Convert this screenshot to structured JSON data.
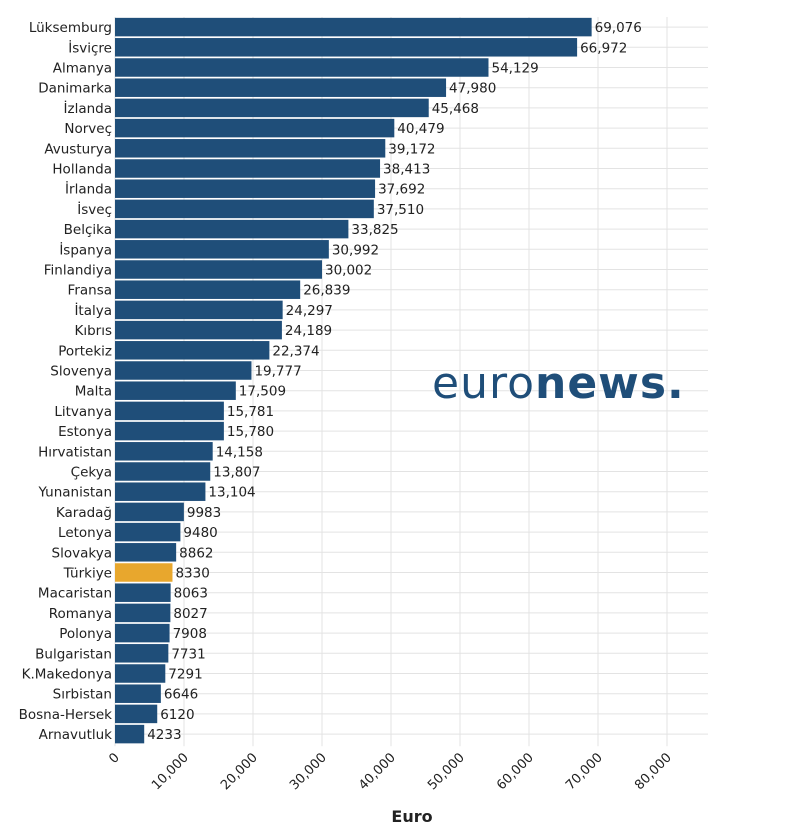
{
  "chart_data": {
    "type": "bar",
    "orientation": "horizontal",
    "title": "",
    "xlabel": "Euro",
    "ylabel": "",
    "xlim": [
      0,
      85000
    ],
    "x_ticks": [
      0,
      10000,
      20000,
      30000,
      40000,
      50000,
      60000,
      70000,
      80000
    ],
    "x_tick_labels": [
      "0",
      "10,000",
      "20,000",
      "30,000",
      "40,000",
      "50,000",
      "60,000",
      "70,000",
      "80,000"
    ],
    "grid": true,
    "categories": [
      "Lüksemburg",
      "İsviçre",
      "Almanya",
      "Danimarka",
      "İzlanda",
      "Norveç",
      "Avusturya",
      "Hollanda",
      "İrlanda",
      "İsveç",
      "Belçika",
      "İspanya",
      "Finlandiya",
      "Fransa",
      "İtalya",
      "Kıbrıs",
      "Portekiz",
      "Slovenya",
      "Malta",
      "Litvanya",
      "Estonya",
      "Hırvatistan",
      "Çekya",
      "Yunanistan",
      "Karadağ",
      "Letonya",
      "Slovakya",
      "Türkiye",
      "Macaristan",
      "Romanya",
      "Polonya",
      "Bulgaristan",
      "K.Makedonya",
      "Sırbistan",
      "Bosna-Hersek",
      "Arnavutluk"
    ],
    "values": [
      69076,
      66972,
      54129,
      47980,
      45468,
      40479,
      39172,
      38413,
      37692,
      37510,
      33825,
      30992,
      30002,
      26839,
      24297,
      24189,
      22374,
      19777,
      17509,
      15781,
      15780,
      14158,
      13807,
      13104,
      9983,
      9480,
      8862,
      8330,
      8063,
      8027,
      7908,
      7731,
      7291,
      6646,
      6120,
      4233
    ],
    "value_labels": [
      "69,076",
      "66,972",
      "54,129",
      "47,980",
      "45,468",
      "40,479",
      "39,172",
      "38,413",
      "37,692",
      "37,510",
      "33,825",
      "30,992",
      "30,002",
      "26,839",
      "24,297",
      "24,189",
      "22,374",
      "19,777",
      "17,509",
      "15,781",
      "15,780",
      "14,158",
      "13,807",
      "13,104",
      "9983",
      "9480",
      "8862",
      "8330",
      "8063",
      "8027",
      "7908",
      "7731",
      "7291",
      "6646",
      "6120",
      "4233"
    ],
    "highlight": "Türkiye",
    "colors": {
      "bar": "#1f4e79",
      "highlight": "#e8a72d",
      "grid": "#e3e3e3",
      "text": "#222222",
      "watermark": "#1f4e79"
    }
  },
  "watermark": {
    "part1": "euro",
    "part2": "news."
  }
}
